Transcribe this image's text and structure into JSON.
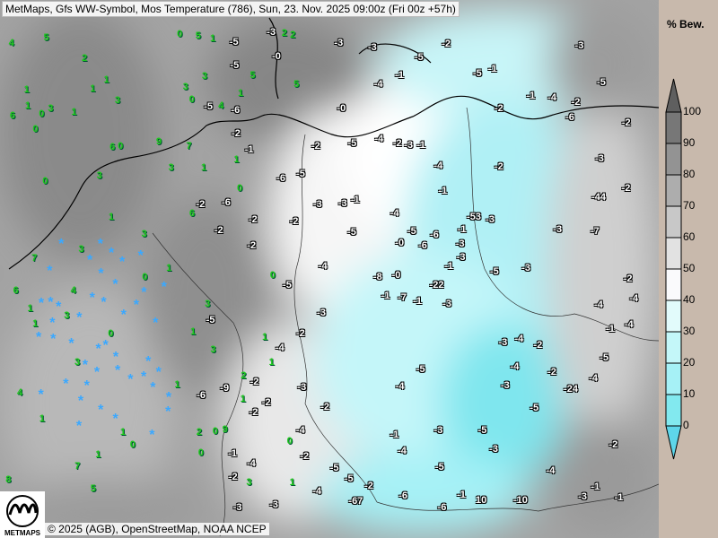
{
  "header": {
    "title": "MetMaps, Gfs WW-Symbol, Mos Temperature (786), Sun, 23. Nov. 2025 09:00z (Fri 00z +57h)"
  },
  "footer": {
    "copyright": "© 2025 (AGB), OpenStreetMap, NOAA NCEP",
    "logo_text": "METMAPS"
  },
  "legend": {
    "title": "% Bew.",
    "ticks": [
      "100",
      "90",
      "80",
      "70",
      "60",
      "50",
      "40",
      "30",
      "20",
      "10",
      "0"
    ],
    "colors": [
      "#777777",
      "#939393",
      "#adadad",
      "#c8c8c8",
      "#e2e2e2",
      "#fafafc",
      "#e2fbfb",
      "#c4f7f9",
      "#a6f1f6",
      "#82e9ef"
    ],
    "over_color": "#5f5f5f",
    "under_color": "#5ed6ea"
  },
  "map": {
    "temperature_labels": [
      "-1",
      "-1",
      "-0",
      "-1",
      "-1",
      "-2",
      "-1",
      "-1",
      "-2",
      "-1",
      "-0",
      "-1",
      "-2",
      "-2",
      "-1",
      "-2",
      "-3",
      "-2",
      "-1",
      "-2",
      "-1",
      "-2",
      "-2",
      "-3",
      "-2",
      "-1",
      "-2",
      "-3",
      "-2",
      "-1",
      "-0",
      "-2",
      "-1",
      "-3",
      "-2",
      "-2",
      "-3",
      "-2",
      "-3",
      "-4",
      "-2",
      "-3",
      "-3",
      "-4",
      "-3",
      "-2",
      "-3",
      "-5",
      "-4",
      "-3",
      "-4",
      "-5",
      "-3",
      "-2",
      "-5",
      "-4",
      "-6",
      "-5",
      "-4",
      "-3",
      "-5",
      "-4",
      "-5",
      "-6",
      "-4",
      "-5",
      "-4",
      "-3",
      "-5",
      "-6",
      "-5",
      "-4",
      "-5",
      "-6",
      "-4",
      "-5",
      "-5",
      "-6",
      "-7",
      "-5",
      "-4",
      "-6",
      "-5",
      "-4",
      "-3",
      "-5",
      "-6",
      "-4",
      "-5",
      "-3",
      "-2",
      "-4",
      "-3",
      "-5",
      "-6",
      "-5",
      "-4",
      "-6",
      "-8",
      "-9",
      "-7",
      "-5",
      "-4",
      "-3",
      "-2",
      "-3",
      "-4",
      "-5",
      "-3",
      "-2",
      "-1",
      "-2",
      "-3",
      "-2",
      "-1",
      "-0",
      "-1",
      "-2",
      "-3",
      "-4",
      "-3",
      "-2",
      "-24",
      "-22",
      "-53",
      "-44",
      "-67"
    ],
    "teal_labels": [
      "10",
      "-10"
    ],
    "ww_symbols": [
      "9",
      "8",
      "7",
      "7",
      "3",
      "6",
      "5",
      "5",
      "9",
      "5",
      "6",
      "5",
      "4",
      "4",
      "3",
      "3",
      "7",
      "6",
      "3",
      "1",
      "1",
      "0",
      "1",
      "0",
      "1",
      "1",
      "0",
      "0",
      "1",
      "2",
      "3",
      "3",
      "3",
      "2",
      "3",
      "4",
      "5",
      "3",
      "3",
      "6",
      "3",
      "1",
      "1",
      "1",
      "0",
      "0",
      "1",
      "1",
      "0",
      "0",
      "1",
      "1",
      "2",
      "1",
      "1",
      "2",
      "1",
      "0",
      "0",
      "1",
      "1",
      "1",
      "0",
      "3",
      "4",
      "3",
      "0",
      "1",
      "1",
      "0",
      "0",
      "1",
      "2"
    ],
    "snow_symbol": "*"
  }
}
